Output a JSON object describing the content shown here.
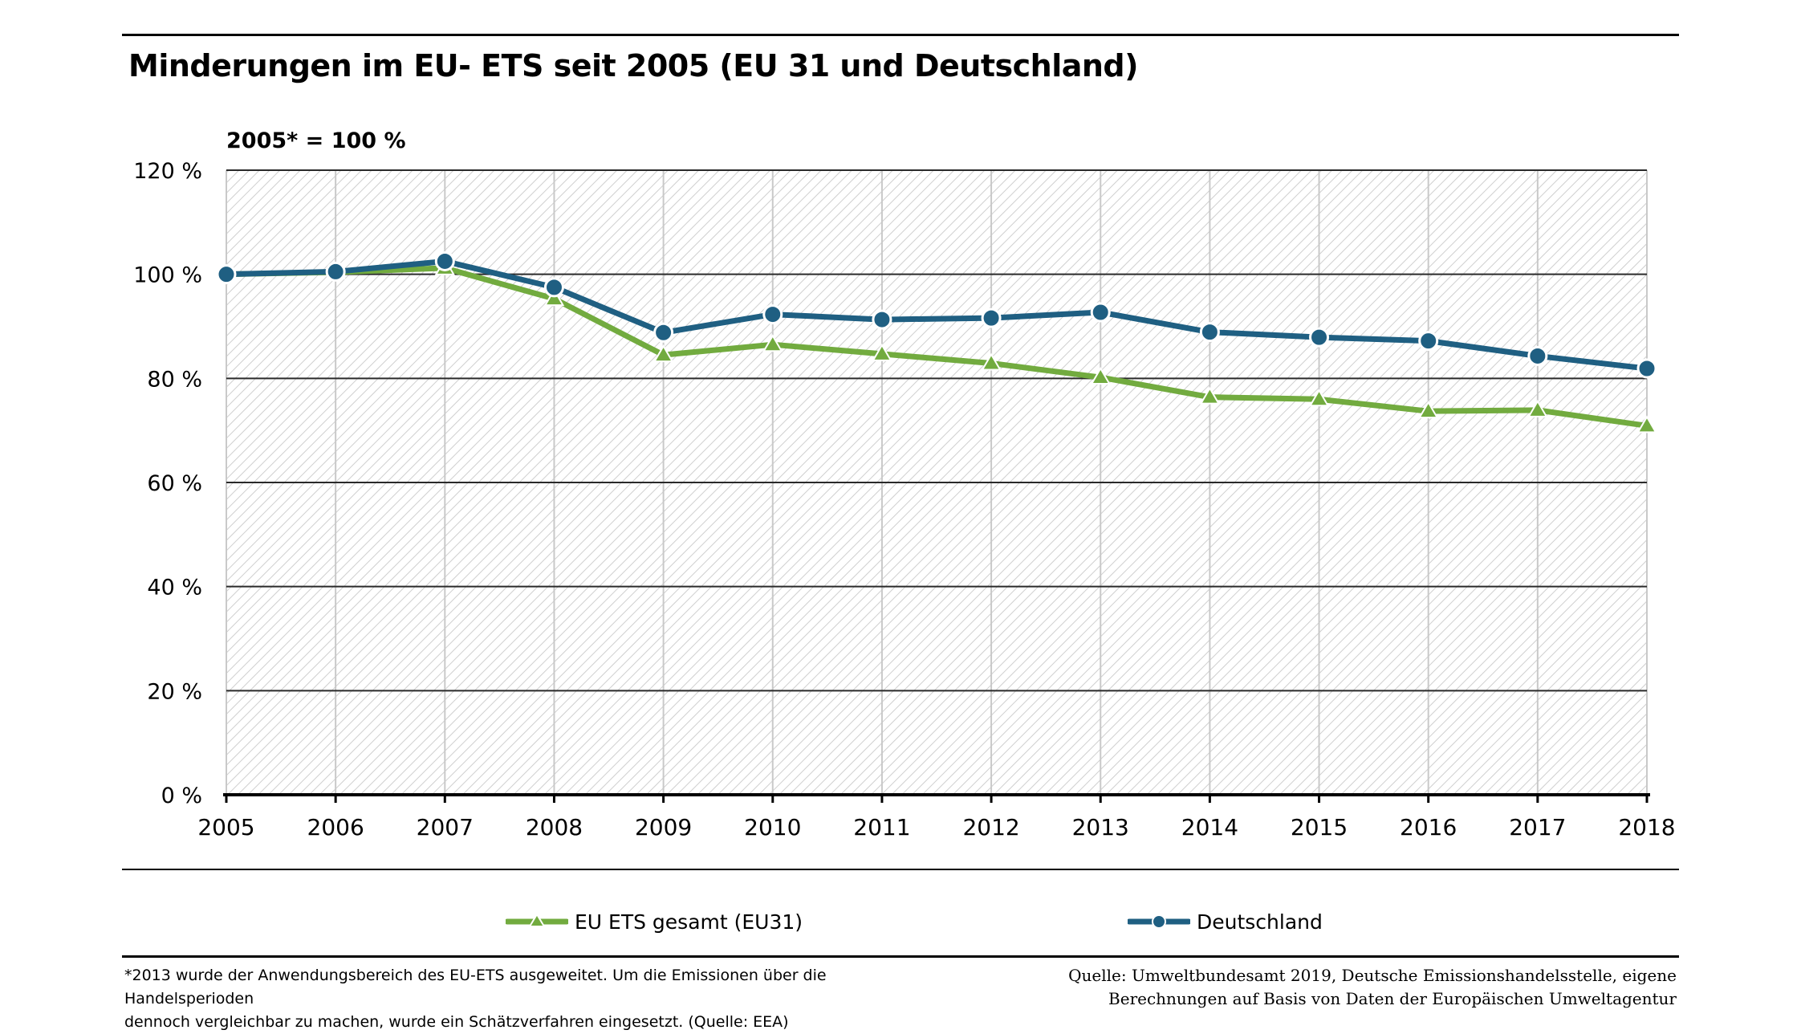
{
  "title": "Minderungen im EU- ETS seit 2005 (EU 31 und Deutschland)",
  "base_note": "2005* = 100 %",
  "footnote_lines": [
    "*2013 wurde der Anwendungsbereich des EU-ETS ausgeweitet. Um die Emissionen über die Handelsperioden",
    "dennoch vergleichbar zu machen, wurde ein Schätzverfahren eingesetzt. (Quelle: EEA)"
  ],
  "source_lines": [
    "Quelle: Umweltbundesamt 2019, Deutsche Emissionshandelsstelle, eigene",
    "Berechnungen auf Basis von Daten der Europäischen Umweltagentur"
  ],
  "colors": {
    "eu": "#72ab3f",
    "de": "#1f5f82",
    "grid": "#000000",
    "hatch": "#c8c8c8"
  },
  "chart_data": {
    "type": "line",
    "x": [
      "2005",
      "2006",
      "2007",
      "2008",
      "2009",
      "2010",
      "2011",
      "2012",
      "2013",
      "2014",
      "2015",
      "2016",
      "2017",
      "2018"
    ],
    "ylim": [
      0,
      120
    ],
    "yticks": [
      0,
      20,
      40,
      60,
      80,
      100,
      120
    ],
    "ytick_labels": [
      "0 %",
      "20 %",
      "40 %",
      "60 %",
      "80 %",
      "100 %",
      "120 %"
    ],
    "grid": true,
    "legend_position": "bottom",
    "series": [
      {
        "name": "EU ETS gesamt (EU31)",
        "marker": "triangle",
        "color": "#72ab3f",
        "values": [
          100,
          100.4,
          101.2,
          95.3,
          84.5,
          86.5,
          84.7,
          82.9,
          80.2,
          76.4,
          76.0,
          73.7,
          73.9,
          70.9
        ]
      },
      {
        "name": "Deutschland",
        "marker": "circle",
        "color": "#1f5f82",
        "values": [
          100,
          100.5,
          102.5,
          97.5,
          88.8,
          92.3,
          91.3,
          91.6,
          92.7,
          88.9,
          87.9,
          87.2,
          84.3,
          81.9
        ]
      }
    ]
  }
}
